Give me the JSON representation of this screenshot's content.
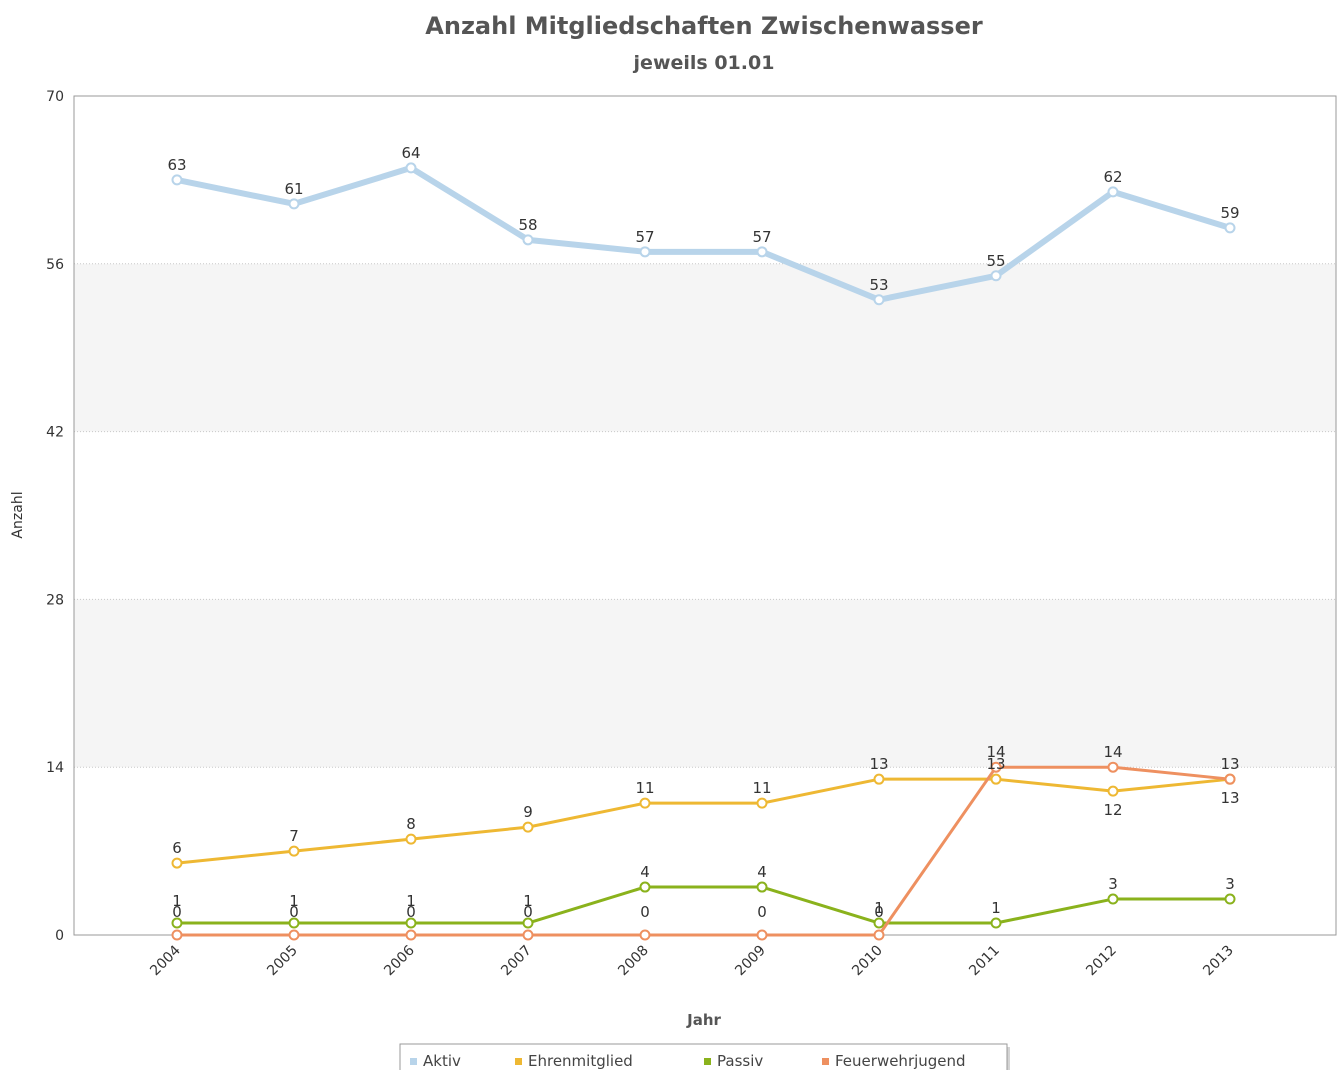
{
  "chart_data": {
    "type": "line",
    "title": "Anzahl Mitgliedschaften Zwischenwasser",
    "subtitle": "jeweils 01.01",
    "xlabel": "Jahr",
    "ylabel": "Anzahl",
    "ylim": [
      0,
      70
    ],
    "yticks": [
      "0",
      "14",
      "28",
      "42",
      "56",
      "70"
    ],
    "categories": [
      "2004",
      "2005",
      "2006",
      "2007",
      "2008",
      "2009",
      "2010",
      "2011",
      "2012",
      "2013"
    ],
    "grid": "horizontal, dotted, alternating bands",
    "legend_position": "bottom",
    "series": [
      {
        "name": "Aktiv",
        "color": "#b8d4ea",
        "values": [
          63,
          61,
          64,
          58,
          57,
          57,
          53,
          55,
          62,
          59
        ]
      },
      {
        "name": "Ehrenmitglied",
        "color": "#eeb833",
        "values": [
          6,
          7,
          8,
          9,
          11,
          11,
          13,
          13,
          12,
          13
        ]
      },
      {
        "name": "Passiv",
        "color": "#8ab21c",
        "values": [
          1,
          1,
          1,
          1,
          4,
          4,
          1,
          1,
          3,
          3
        ]
      },
      {
        "name": "Feuerwehrjugend",
        "color": "#ee9060",
        "values": [
          0,
          0,
          0,
          0,
          0,
          0,
          0,
          14,
          14,
          13
        ]
      }
    ]
  }
}
